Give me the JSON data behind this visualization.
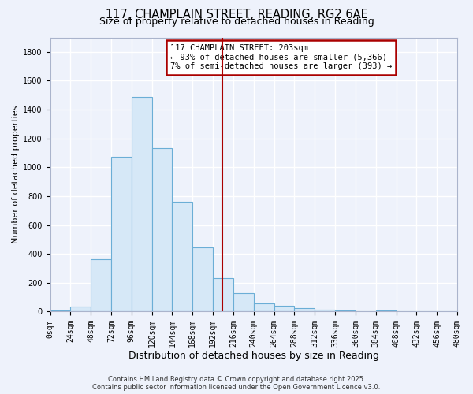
{
  "title": "117, CHAMPLAIN STREET, READING, RG2 6AE",
  "subtitle": "Size of property relative to detached houses in Reading",
  "xlabel": "Distribution of detached houses by size in Reading",
  "ylabel": "Number of detached properties",
  "bar_color": "#d6e8f7",
  "bar_edge_color": "#6baed6",
  "background_color": "#eef2fb",
  "grid_color": "#ffffff",
  "vline_x": 203,
  "vline_color": "#aa0000",
  "annotation_line1": "117 CHAMPLAIN STREET: 203sqm",
  "annotation_line2": "← 93% of detached houses are smaller (5,366)",
  "annotation_line3": "7% of semi-detached houses are larger (393) →",
  "bin_edges": [
    0,
    24,
    48,
    72,
    96,
    120,
    144,
    168,
    192,
    216,
    240,
    264,
    288,
    312,
    336,
    360,
    384,
    408,
    432,
    456,
    480
  ],
  "bin_values": [
    10,
    35,
    360,
    1070,
    1490,
    1130,
    760,
    445,
    230,
    125,
    55,
    40,
    25,
    15,
    5,
    0,
    5,
    0,
    0,
    0
  ],
  "ylim": [
    0,
    1900
  ],
  "xlim": [
    0,
    480
  ],
  "yticks": [
    0,
    200,
    400,
    600,
    800,
    1000,
    1200,
    1400,
    1600,
    1800
  ],
  "xtick_labels": [
    "0sqm",
    "24sqm",
    "48sqm",
    "72sqm",
    "96sqm",
    "120sqm",
    "144sqm",
    "168sqm",
    "192sqm",
    "216sqm",
    "240sqm",
    "264sqm",
    "288sqm",
    "312sqm",
    "336sqm",
    "360sqm",
    "384sqm",
    "408sqm",
    "432sqm",
    "456sqm",
    "480sqm"
  ],
  "footer_line1": "Contains HM Land Registry data © Crown copyright and database right 2025.",
  "footer_line2": "Contains public sector information licensed under the Open Government Licence v3.0.",
  "title_fontsize": 10.5,
  "subtitle_fontsize": 9,
  "xlabel_fontsize": 9,
  "ylabel_fontsize": 8,
  "tick_fontsize": 7,
  "footer_fontsize": 6,
  "annotation_fontsize": 7.5
}
